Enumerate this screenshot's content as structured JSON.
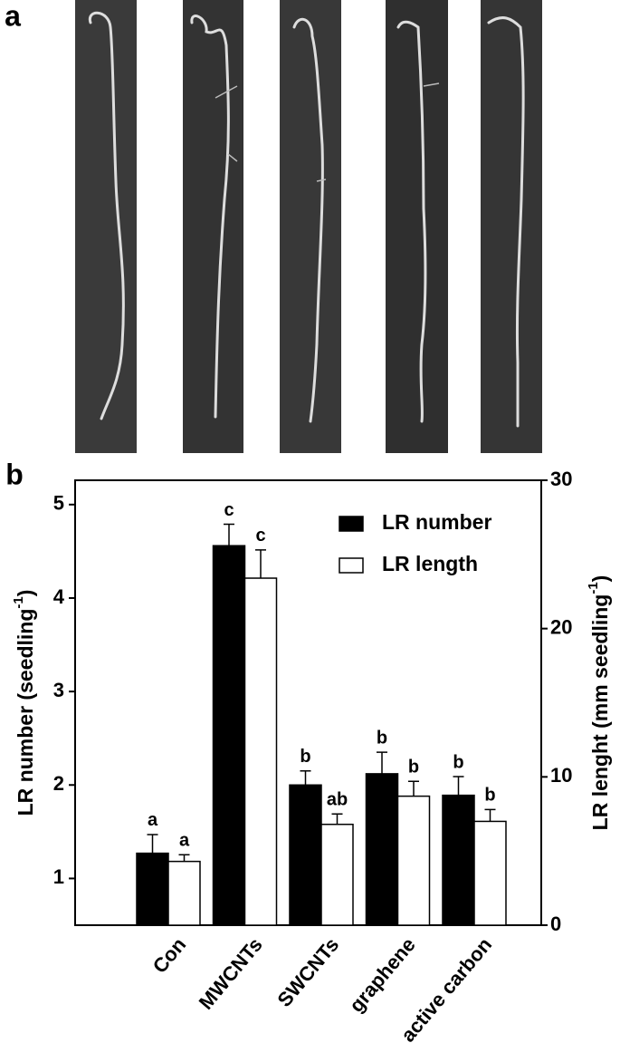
{
  "panel_labels": [
    "a",
    "b"
  ],
  "chart_data": {
    "type": "bar",
    "categories": [
      "Con",
      "MWCNTs",
      "SWCNTs",
      "graphene",
      "active carbon"
    ],
    "series": [
      {
        "name": "LR number",
        "color": "#000000",
        "axis": "y",
        "values": [
          1.27,
          4.56,
          2.0,
          2.12,
          1.89
        ],
        "errors": [
          0.2,
          0.23,
          0.15,
          0.23,
          0.2
        ],
        "letters": [
          "a",
          "c",
          "b",
          "b",
          "b"
        ]
      },
      {
        "name": "LR length",
        "color": "#ffffff",
        "axis": "y2",
        "values": [
          4.3,
          23.4,
          6.8,
          8.7,
          7.0
        ],
        "errors": [
          0.45,
          1.9,
          0.7,
          1.0,
          0.8
        ],
        "letters": [
          "a",
          "c",
          "ab",
          "b",
          "b"
        ]
      }
    ],
    "y_label": {
      "text": "LR number (seedling",
      "sup": "-1",
      "end": ")"
    },
    "y2_label": {
      "text": "LR lenght (mm seedling",
      "sup": "-1",
      "end": ")"
    },
    "ylim": [
      0.5,
      5.26
    ],
    "yticks": [
      1,
      2,
      3,
      4,
      5
    ],
    "y2lim": [
      0,
      30
    ],
    "y2ticks": [
      0,
      10,
      20,
      30
    ],
    "legend": "top-right"
  }
}
